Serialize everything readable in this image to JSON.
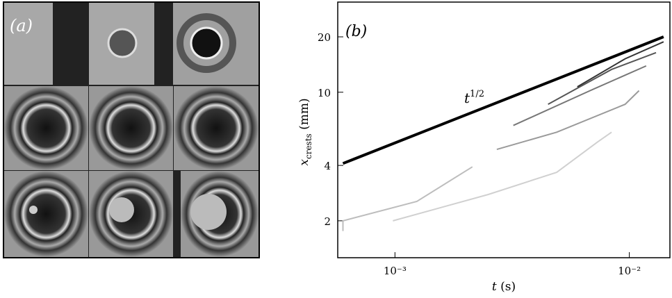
{
  "panel_a_label": "(a)",
  "chart_data": {
    "type": "line",
    "panel_label": "(b)",
    "xlabel": {
      "base": "t",
      "rest": " (s)"
    },
    "ylabel": {
      "base": "x",
      "sub": "crests",
      "rest": " (mm)"
    },
    "annotation": {
      "base": "t",
      "sup": "1/2"
    },
    "xscale": "log",
    "yscale": "log",
    "xlim": [
      0.00057,
      0.0149
    ],
    "ylim": [
      1.26,
      30.9
    ],
    "xticks": [
      {
        "value": 0.001,
        "label": "10⁻³"
      },
      {
        "value": 0.01,
        "label": "10⁻²"
      }
    ],
    "yticks": [
      2,
      4,
      10,
      20
    ],
    "series": [
      {
        "color": "#000000",
        "width": 4,
        "x": [
          0.0006,
          0.014
        ],
        "values": [
          4.1,
          20
        ]
      },
      {
        "color": "#bdbdbd",
        "width": 2,
        "x": [
          0.0006,
          0.0006,
          0.00124,
          0.00214
        ],
        "values": [
          1.76,
          2.0,
          2.55,
          3.93
        ]
      },
      {
        "color": "#d0d0d0",
        "width": 2,
        "x": [
          0.00098,
          0.0025,
          0.0049,
          0.0073,
          0.0084
        ],
        "values": [
          2.0,
          2.78,
          3.67,
          5.35,
          6.06
        ]
      },
      {
        "color": "#9a9a9a",
        "width": 2,
        "x": [
          0.00272,
          0.0049,
          0.0096,
          0.011
        ],
        "values": [
          4.89,
          6.06,
          8.6,
          10.2
        ]
      },
      {
        "color": "#777777",
        "width": 2,
        "x": [
          0.0032,
          0.0068,
          0.0118
        ],
        "values": [
          6.6,
          10.2,
          13.9
        ]
      },
      {
        "color": "#555555",
        "width": 2,
        "x": [
          0.0045,
          0.0084,
          0.013
        ],
        "values": [
          8.6,
          13.3,
          16.4
        ]
      },
      {
        "color": "#333333",
        "width": 2,
        "x": [
          0.006,
          0.0096,
          0.014
        ],
        "values": [
          10.7,
          15.2,
          18.8
        ]
      }
    ]
  }
}
